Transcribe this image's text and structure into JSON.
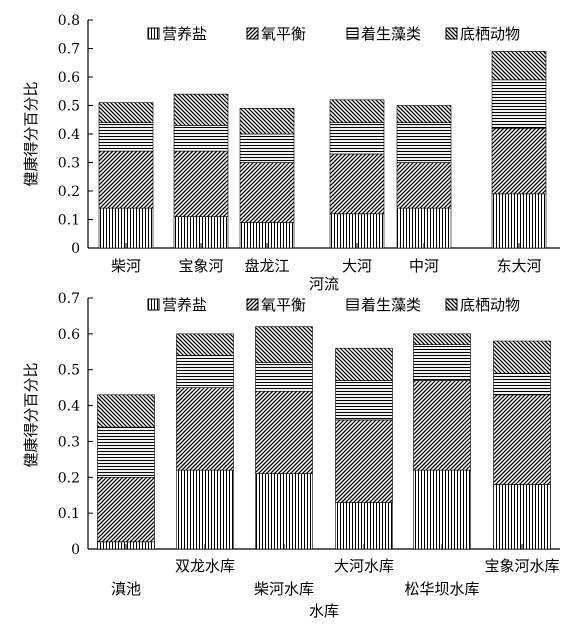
{
  "legend": [
    {
      "label": "营养盐",
      "icon": "vertical-hatch-icon"
    },
    {
      "label": "氧平衡",
      "icon": "diagonal-hatch-icon"
    },
    {
      "label": "着生藻类",
      "icon": "horizontal-hatch-icon"
    },
    {
      "label": "底栖动物",
      "icon": "back-diagonal-hatch-icon"
    }
  ],
  "chart_data": [
    {
      "type": "bar",
      "stacked": true,
      "xlabel": "河流",
      "ylabel": "健康得分百分比",
      "ylim": [
        0,
        0.8
      ],
      "yticks": [
        "0",
        "0.1",
        "0.2",
        "0.3",
        "0.4",
        "0.5",
        "0.6",
        "0.7",
        "0.8"
      ],
      "categories": [
        "柴河",
        "宝象河",
        "盘龙江",
        "大河",
        "中河",
        "东大河"
      ],
      "series": [
        {
          "name": "营养盐",
          "pattern": "vertical",
          "values": [
            0.14,
            0.11,
            0.09,
            0.12,
            0.14,
            0.19
          ]
        },
        {
          "name": "氧平衡",
          "pattern": "diagonal",
          "values": [
            0.2,
            0.23,
            0.21,
            0.21,
            0.16,
            0.23
          ]
        },
        {
          "name": "着生藻类",
          "pattern": "horizontal",
          "values": [
            0.1,
            0.09,
            0.1,
            0.11,
            0.14,
            0.17
          ]
        },
        {
          "name": "底栖动物",
          "pattern": "backdiagonal",
          "values": [
            0.07,
            0.11,
            0.09,
            0.08,
            0.06,
            0.1
          ]
        }
      ]
    },
    {
      "type": "bar",
      "stacked": true,
      "xlabel": "水库",
      "ylabel": "健康得分百分比",
      "ylim": [
        0,
        0.7
      ],
      "yticks": [
        "0",
        "0.1",
        "0.2",
        "0.3",
        "0.4",
        "0.5",
        "0.6",
        "0.7"
      ],
      "categories": [
        "滇池",
        "双龙水库",
        "柴河水库",
        "大河水库",
        "松华坝水库",
        "宝象河水库"
      ],
      "series": [
        {
          "name": "营养盐",
          "pattern": "vertical",
          "values": [
            0.02,
            0.22,
            0.21,
            0.13,
            0.22,
            0.18
          ]
        },
        {
          "name": "氧平衡",
          "pattern": "diagonal",
          "values": [
            0.18,
            0.23,
            0.23,
            0.23,
            0.25,
            0.25
          ]
        },
        {
          "name": "着生藻类",
          "pattern": "horizontal",
          "values": [
            0.14,
            0.09,
            0.08,
            0.11,
            0.1,
            0.06
          ]
        },
        {
          "name": "底栖动物",
          "pattern": "backdiagonal",
          "values": [
            0.09,
            0.06,
            0.1,
            0.09,
            0.03,
            0.09
          ]
        }
      ]
    }
  ]
}
